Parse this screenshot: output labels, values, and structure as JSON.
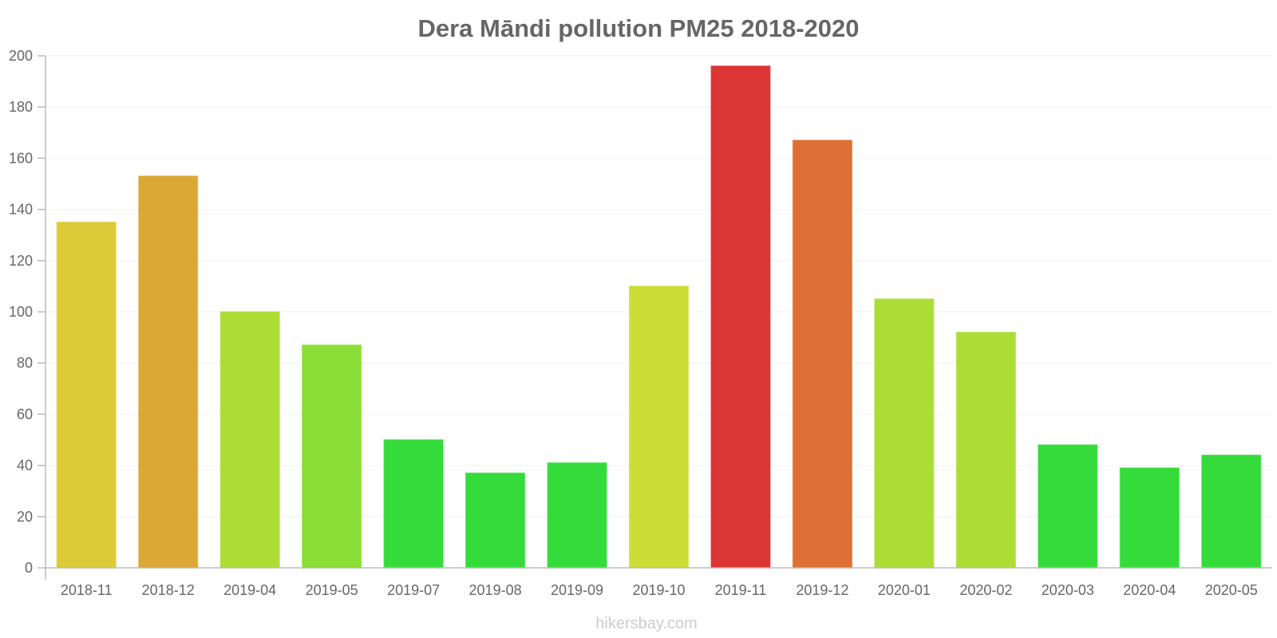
{
  "chart_data": {
    "type": "bar",
    "title": "Dera Māndi pollution PM25 2018-2020",
    "xlabel": "",
    "ylabel": "",
    "ylim": [
      0,
      200
    ],
    "yticks": [
      0,
      20,
      40,
      60,
      80,
      100,
      120,
      140,
      160,
      180,
      200
    ],
    "categories": [
      "2018-11",
      "2018-12",
      "2019-04",
      "2019-05",
      "2019-07",
      "2019-08",
      "2019-09",
      "2019-10",
      "2019-11",
      "2019-12",
      "2020-01",
      "2020-02",
      "2020-03",
      "2020-04",
      "2020-05"
    ],
    "values": [
      135,
      153,
      100,
      87,
      50,
      37,
      41,
      110,
      196,
      167,
      105,
      92,
      48,
      39,
      44
    ],
    "colors": [
      "#dccb36",
      "#dca835",
      "#acdd35",
      "#8bde35",
      "#35db3a",
      "#35db3a",
      "#35db3a",
      "#cddd35",
      "#db3535",
      "#dd7035",
      "#acdd35",
      "#acdd35",
      "#35db3a",
      "#35db3a",
      "#35db3a"
    ],
    "grid": true,
    "legend": "none"
  },
  "watermark": "hikersbay.com"
}
